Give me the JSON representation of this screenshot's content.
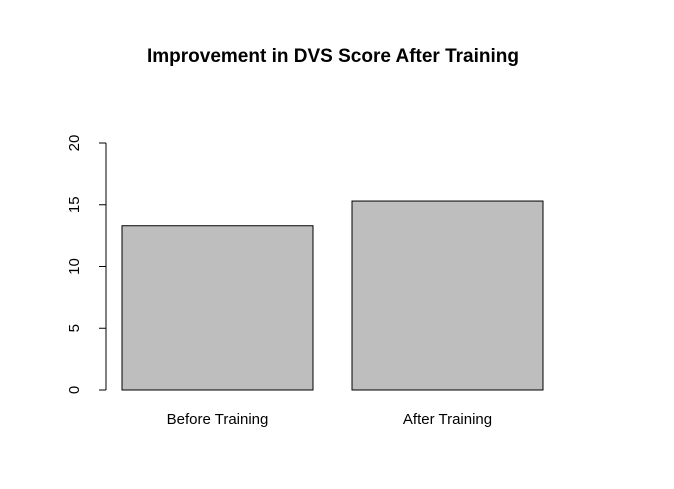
{
  "chart_data": {
    "type": "bar",
    "title": "Improvement in DVS Score After Training",
    "xlabel": "",
    "ylabel": "",
    "categories": [
      "Before Training",
      "After Training"
    ],
    "values": [
      13.3,
      15.3
    ],
    "ylim": [
      0,
      20
    ],
    "yticks": [
      0,
      5,
      10,
      15,
      20
    ],
    "grid": false,
    "legend": "none",
    "bar_color": "#bebebe",
    "border_color": "#000000"
  }
}
